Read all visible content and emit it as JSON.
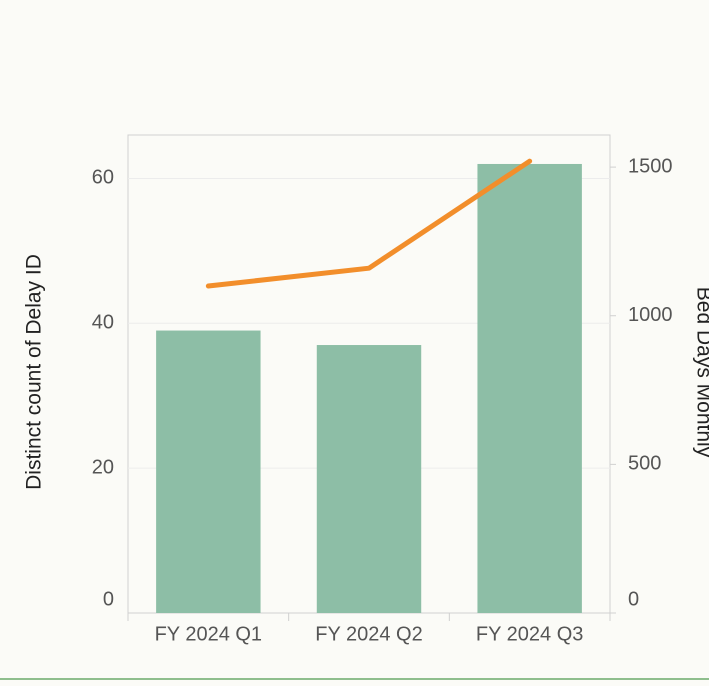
{
  "chart_data": {
    "type": "bar_line",
    "categories": [
      "FY 2024 Q1",
      "FY 2024 Q2",
      "FY 2024 Q3"
    ],
    "ylabel": "Distinct count of Delay ID",
    "y2label": "Bed Days Monthly",
    "series": [
      {
        "name": "Distinct count of Delay ID",
        "type": "bar",
        "color": "#8dbea6",
        "values": [
          39,
          37,
          62
        ]
      },
      {
        "name": "Bed Days Monthly",
        "type": "line",
        "axis": "y2",
        "color": "#f28e2b",
        "values": [
          1100,
          1160,
          1520
        ]
      }
    ],
    "ylim": [
      0,
      66
    ],
    "yticks": [
      0,
      20,
      40,
      60
    ],
    "y2lim": [
      0,
      1608
    ],
    "y2ticks": [
      0,
      500,
      1000,
      1500
    ],
    "grid": true
  }
}
